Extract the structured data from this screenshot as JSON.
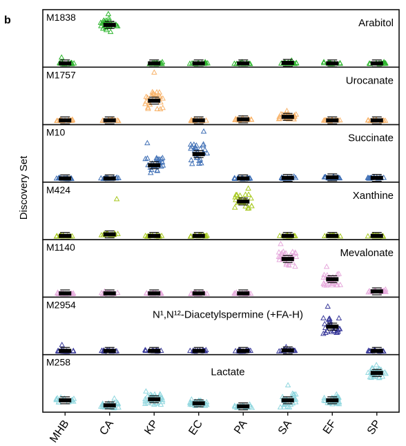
{
  "figure": {
    "panel_label": "b",
    "ylabel": "Discovery Set"
  },
  "chart_data": {
    "type": "scatter",
    "ylabel": "Discovery Set",
    "ylim": [
      0,
      1
    ],
    "categories": [
      "MHB",
      "CA",
      "KP",
      "EC",
      "PA",
      "SA",
      "EF",
      "SP"
    ],
    "panels": [
      {
        "id": "M1838",
        "name": "Arabitol",
        "name_position": "right",
        "color": "#2db52d",
        "means": [
          0.02,
          0.78,
          0.02,
          0.02,
          0.02,
          0.03,
          0.02,
          0.02
        ],
        "spread": [
          0.03,
          0.28,
          0.02,
          0.02,
          0.02,
          0.04,
          0.02,
          0.02
        ],
        "max": [
          0.14,
          1.0,
          0.05,
          0.05,
          0.05,
          0.08,
          0.05,
          0.05
        ]
      },
      {
        "id": "M1757",
        "name": "Urocanate",
        "name_position": "right",
        "color": "#f8b36a",
        "means": [
          0.03,
          0.03,
          0.42,
          0.03,
          0.05,
          0.1,
          0.03,
          0.03
        ],
        "spread": [
          0.02,
          0.02,
          0.35,
          0.02,
          0.03,
          0.12,
          0.02,
          0.02
        ],
        "max": [
          0.05,
          0.05,
          0.98,
          0.05,
          0.08,
          0.22,
          0.05,
          0.05
        ]
      },
      {
        "id": "M10",
        "name": "Succinate",
        "name_position": "right",
        "color": "#3f6fb5",
        "means": [
          0.02,
          0.02,
          0.28,
          0.5,
          0.02,
          0.03,
          0.04,
          0.03
        ],
        "spread": [
          0.02,
          0.02,
          0.3,
          0.45,
          0.02,
          0.03,
          0.03,
          0.02
        ],
        "max": [
          0.04,
          0.04,
          0.72,
          0.95,
          0.04,
          0.06,
          0.06,
          0.05
        ]
      },
      {
        "id": "M424",
        "name": "Xanthine",
        "name_position": "right",
        "color": "#a6c81e",
        "means": [
          0.02,
          0.05,
          0.02,
          0.02,
          0.7,
          0.02,
          0.02,
          0.02
        ],
        "spread": [
          0.02,
          0.04,
          0.02,
          0.02,
          0.3,
          0.02,
          0.02,
          0.02
        ],
        "max": [
          0.04,
          0.75,
          0.04,
          0.04,
          0.96,
          0.04,
          0.04,
          0.04
        ]
      },
      {
        "id": "M1140",
        "name": "Mevalonate",
        "name_position": "right",
        "color": "#e6a9dc",
        "means": [
          0.02,
          0.02,
          0.02,
          0.02,
          0.02,
          0.7,
          0.3,
          0.06
        ],
        "spread": [
          0.02,
          0.03,
          0.02,
          0.02,
          0.02,
          0.35,
          0.25,
          0.04
        ],
        "max": [
          0.04,
          0.06,
          0.04,
          0.04,
          0.04,
          1.0,
          0.55,
          0.1
        ]
      },
      {
        "id": "M2954",
        "name": "N¹,N¹²-Diacetylspermine (+FA-H)",
        "name_position": "center",
        "color": "#3a3a9a",
        "means": [
          0.02,
          0.02,
          0.02,
          0.02,
          0.02,
          0.03,
          0.5,
          0.02
        ],
        "spread": [
          0.03,
          0.02,
          0.02,
          0.02,
          0.02,
          0.03,
          0.35,
          0.02
        ],
        "max": [
          0.14,
          0.04,
          0.04,
          0.04,
          0.04,
          0.1,
          0.9,
          0.04
        ]
      },
      {
        "id": "M258",
        "name": "Lactate",
        "name_position": "center",
        "color": "#8ed6de",
        "means": [
          0.18,
          0.08,
          0.2,
          0.12,
          0.06,
          0.18,
          0.18,
          0.72
        ],
        "spread": [
          0.1,
          0.12,
          0.22,
          0.12,
          0.06,
          0.28,
          0.15,
          0.2
        ],
        "max": [
          0.24,
          0.22,
          0.36,
          0.2,
          0.1,
          0.48,
          0.3,
          0.88
        ]
      }
    ]
  }
}
